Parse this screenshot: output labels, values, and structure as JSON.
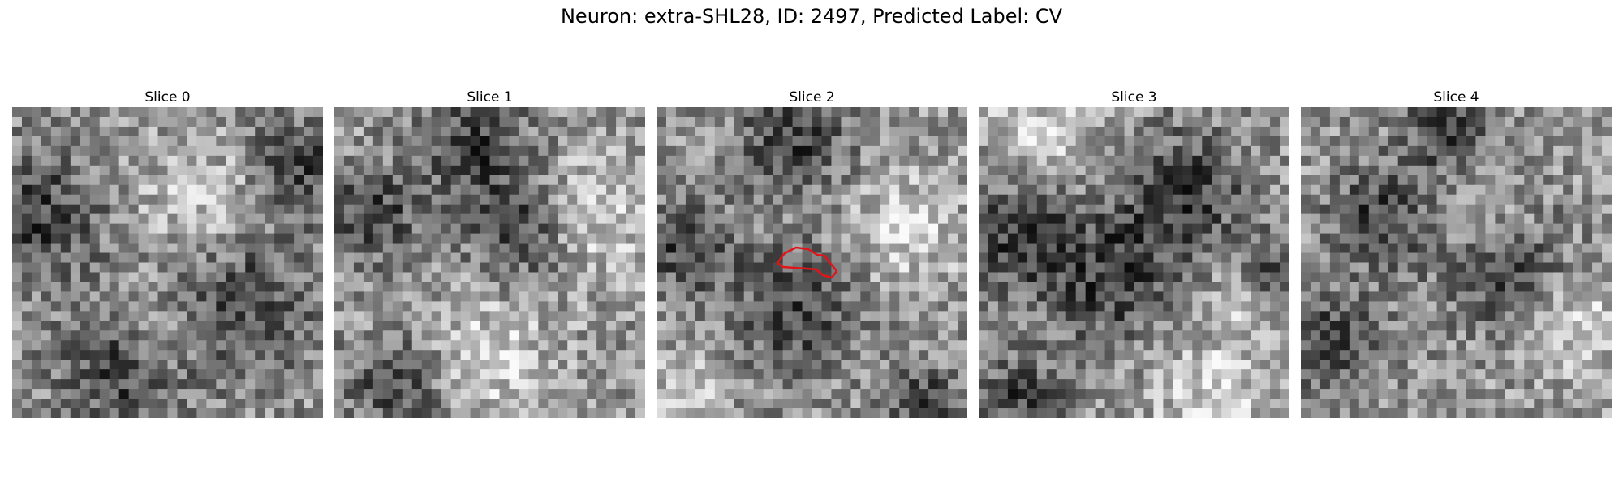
{
  "title": "Neuron: extra-SHL28, ID: 2497, Predicted Label: CV",
  "panels": [
    {
      "label": "Slice 0",
      "seed": 11,
      "dark_spots": [
        [
          0.08,
          0.35,
          0.22
        ],
        [
          0.72,
          0.62,
          0.25
        ],
        [
          0.35,
          0.85,
          0.2
        ],
        [
          0.93,
          0.18,
          0.15
        ]
      ],
      "light_spots": [
        [
          0.6,
          0.32,
          0.2
        ],
        [
          0.5,
          0.72,
          0.15
        ]
      ]
    },
    {
      "label": "Slice 1",
      "seed": 23,
      "dark_spots": [
        [
          0.45,
          0.12,
          0.18
        ],
        [
          0.12,
          0.35,
          0.15
        ],
        [
          0.6,
          0.4,
          0.16
        ],
        [
          0.2,
          0.9,
          0.15
        ]
      ],
      "light_spots": [
        [
          0.85,
          0.35,
          0.2
        ],
        [
          0.5,
          0.8,
          0.2
        ]
      ]
    },
    {
      "label": "Slice 2",
      "seed": 37,
      "dark_spots": [
        [
          0.45,
          0.1,
          0.18
        ],
        [
          0.45,
          0.65,
          0.2
        ],
        [
          0.1,
          0.45,
          0.15
        ],
        [
          0.85,
          0.95,
          0.12
        ]
      ],
      "light_spots": [
        [
          0.8,
          0.4,
          0.18
        ],
        [
          0.1,
          0.9,
          0.1
        ]
      ],
      "contour": true
    },
    {
      "label": "Slice 3",
      "seed": 41,
      "dark_spots": [
        [
          0.12,
          0.4,
          0.22
        ],
        [
          0.67,
          0.27,
          0.2
        ],
        [
          0.45,
          0.55,
          0.22
        ],
        [
          0.95,
          0.55,
          0.12
        ],
        [
          0.15,
          0.95,
          0.14
        ]
      ],
      "light_spots": [
        [
          0.2,
          0.1,
          0.2
        ],
        [
          0.75,
          0.9,
          0.2
        ],
        [
          0.85,
          0.6,
          0.1
        ]
      ]
    },
    {
      "label": "Slice 4",
      "seed": 53,
      "dark_spots": [
        [
          0.47,
          0.08,
          0.14
        ],
        [
          0.25,
          0.35,
          0.16
        ],
        [
          0.65,
          0.5,
          0.2
        ],
        [
          0.1,
          0.75,
          0.15
        ]
      ],
      "light_spots": [
        [
          0.6,
          0.35,
          0.15
        ],
        [
          0.9,
          0.7,
          0.15
        ]
      ]
    }
  ]
}
